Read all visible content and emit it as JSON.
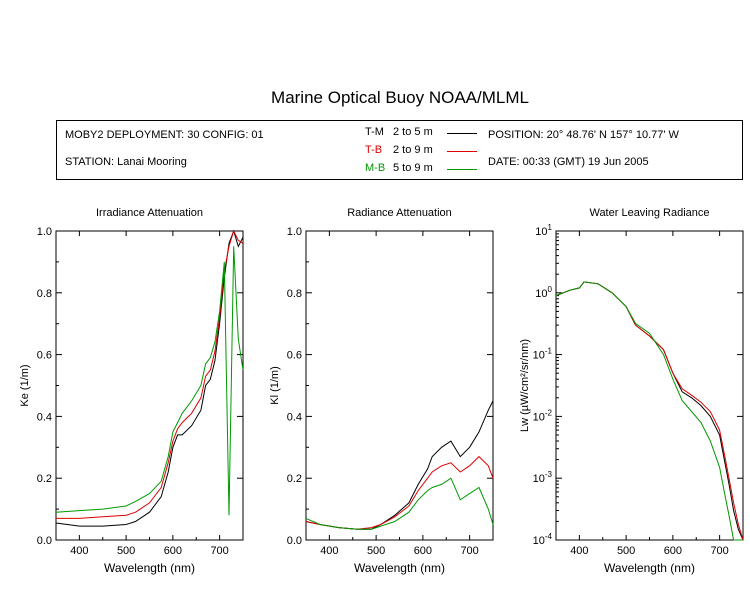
{
  "page_title": "Marine Optical Buoy NOAA/MLML",
  "info": {
    "deployment": "MOBY2 DEPLOYMENT: 30 CONFIG: 01",
    "station": "STATION: Lanai Mooring",
    "position": "POSITION: 20° 48.76' N   157° 10.77' W",
    "date": "DATE: 00:33 (GMT) 19 Jun 2005",
    "legend": [
      {
        "code": "T-M",
        "range": "2 to 5  m",
        "color": "#000000"
      },
      {
        "code": "T-B",
        "range": "2 to 9  m",
        "color": "#dd0000"
      },
      {
        "code": "M-B",
        "range": "5 to 9  m",
        "color": "#009900"
      }
    ]
  },
  "colors": {
    "tm": "#000000",
    "tb": "#dd0000",
    "mb": "#009900"
  },
  "chart_data": [
    {
      "type": "line",
      "title": "Irradiance Attenuation",
      "xlabel": "Wavelength (nm)",
      "ylabel": "Ke  (1/m)",
      "xlim": [
        350,
        750
      ],
      "ylim": [
        0,
        1.0
      ],
      "xticks": [
        400,
        500,
        600,
        700
      ],
      "yticks": [
        "0.0",
        "0.2",
        "0.4",
        "0.6",
        "0.8",
        "1.0"
      ],
      "x": [
        350,
        400,
        450,
        500,
        520,
        550,
        575,
        590,
        600,
        610,
        620,
        640,
        660,
        670,
        680,
        690,
        700,
        710,
        720,
        730,
        740,
        750
      ],
      "series": [
        {
          "name": "T-M",
          "values": [
            0.055,
            0.045,
            0.045,
            0.05,
            0.06,
            0.09,
            0.14,
            0.22,
            0.3,
            0.34,
            0.34,
            0.37,
            0.42,
            0.5,
            0.52,
            0.58,
            0.7,
            0.85,
            0.96,
            1.0,
            0.95,
            0.98
          ]
        },
        {
          "name": "T-B",
          "values": [
            0.07,
            0.07,
            0.075,
            0.08,
            0.09,
            0.12,
            0.17,
            0.25,
            0.32,
            0.36,
            0.38,
            0.41,
            0.46,
            0.53,
            0.55,
            0.61,
            0.72,
            0.87,
            0.95,
            1.0,
            0.97,
            0.96
          ]
        },
        {
          "name": "M-B",
          "values": [
            0.09,
            0.095,
            0.1,
            0.11,
            0.125,
            0.15,
            0.19,
            0.27,
            0.35,
            0.38,
            0.41,
            0.45,
            0.5,
            0.57,
            0.59,
            0.64,
            0.74,
            0.9,
            0.08,
            0.95,
            0.65,
            0.55
          ]
        }
      ]
    },
    {
      "type": "line",
      "title": "Radiance Attenuation",
      "xlabel": "Wavelength (nm)",
      "ylabel": "Kl  (1/m)",
      "xlim": [
        350,
        750
      ],
      "ylim": [
        0,
        1.0
      ],
      "xticks": [
        400,
        500,
        600,
        700
      ],
      "yticks": [
        "0.0",
        "0.2",
        "0.4",
        "0.6",
        "0.8",
        "1.0"
      ],
      "x": [
        350,
        380,
        420,
        460,
        490,
        510,
        540,
        570,
        590,
        610,
        620,
        640,
        660,
        680,
        700,
        720,
        740,
        750
      ],
      "series": [
        {
          "name": "T-M",
          "values": [
            0.06,
            0.05,
            0.04,
            0.035,
            0.035,
            0.05,
            0.08,
            0.12,
            0.18,
            0.23,
            0.27,
            0.3,
            0.32,
            0.27,
            0.3,
            0.35,
            0.42,
            0.45
          ]
        },
        {
          "name": "T-B",
          "values": [
            0.06,
            0.05,
            0.04,
            0.035,
            0.04,
            0.05,
            0.075,
            0.11,
            0.16,
            0.2,
            0.22,
            0.24,
            0.25,
            0.22,
            0.24,
            0.27,
            0.24,
            0.2
          ]
        },
        {
          "name": "M-B",
          "values": [
            0.07,
            0.05,
            0.04,
            0.035,
            0.035,
            0.045,
            0.06,
            0.09,
            0.13,
            0.16,
            0.17,
            0.18,
            0.2,
            0.13,
            0.15,
            0.17,
            0.1,
            0.05
          ]
        }
      ]
    },
    {
      "type": "line",
      "title": "Water Leaving Radiance",
      "xlabel": "Wavelength (nm)",
      "ylabel": "Lw  (µW/cm²/sr/nm)",
      "xlim": [
        350,
        750
      ],
      "ylim": [
        0.0001,
        10
      ],
      "yscale": "log",
      "xticks": [
        400,
        500,
        600,
        700
      ],
      "yticks": [
        "10^-4",
        "10^-3",
        "10^-2",
        "10^-1",
        "10^0",
        "10^1"
      ],
      "x": [
        350,
        380,
        400,
        410,
        440,
        470,
        500,
        520,
        550,
        580,
        600,
        620,
        640,
        660,
        680,
        700,
        710,
        720,
        730,
        740,
        750
      ],
      "series": [
        {
          "name": "T-M",
          "values": [
            0.9,
            1.1,
            1.2,
            1.5,
            1.4,
            1.0,
            0.6,
            0.3,
            0.2,
            0.12,
            0.05,
            0.025,
            0.02,
            0.015,
            0.01,
            0.005,
            0.002,
            0.0008,
            0.0003,
            0.00015,
            0.0001
          ]
        },
        {
          "name": "T-B",
          "values": [
            0.9,
            1.1,
            1.2,
            1.5,
            1.4,
            1.0,
            0.6,
            0.3,
            0.2,
            0.12,
            0.05,
            0.028,
            0.022,
            0.017,
            0.012,
            0.006,
            0.0025,
            0.001,
            0.0004,
            0.00018,
            0.0001
          ]
        },
        {
          "name": "M-B",
          "values": [
            0.9,
            1.1,
            1.2,
            1.5,
            1.4,
            1.0,
            0.6,
            0.32,
            0.22,
            0.1,
            0.04,
            0.018,
            0.012,
            0.008,
            0.004,
            0.0015,
            0.0006,
            0.00025,
            0.0001,
            0.0001,
            0.0001
          ]
        }
      ]
    }
  ]
}
